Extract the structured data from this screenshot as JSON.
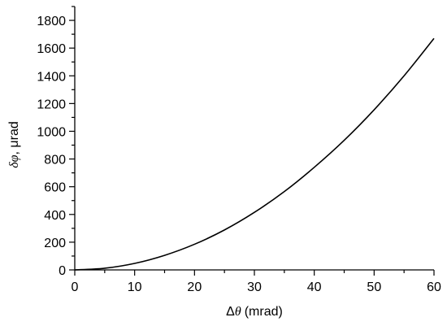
{
  "chart_data": {
    "type": "line",
    "xlabel": {
      "symbol": "Δ",
      "variable": "θ",
      "unit": "(mrad)"
    },
    "ylabel": {
      "symbol": "δ",
      "variable": "φ",
      "unit": ", μrad"
    },
    "xlim": [
      0,
      60
    ],
    "ylim": [
      0,
      1900
    ],
    "x_ticks": [
      0,
      10,
      20,
      30,
      40,
      50,
      60
    ],
    "y_ticks": [
      0,
      200,
      400,
      600,
      800,
      1000,
      1200,
      1400,
      1600,
      1800
    ],
    "grid": false,
    "legend": "none",
    "line_color": "#000000",
    "series": [
      {
        "x": [
          0,
          5,
          10,
          15,
          20,
          25,
          30,
          35,
          40,
          45,
          50,
          55,
          60
        ],
        "values": [
          0,
          12,
          47,
          105,
          185,
          288,
          415,
          565,
          740,
          935,
          1155,
          1400,
          1670
        ]
      }
    ]
  }
}
